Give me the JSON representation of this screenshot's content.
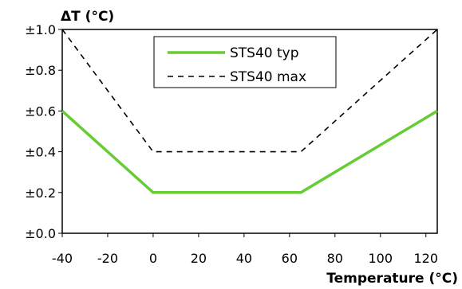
{
  "chart_data": {
    "type": "line",
    "xlabel": "Temperature (°C)",
    "ylabel": "ΔT (°C)",
    "xlim": [
      -40,
      125
    ],
    "ylim": [
      0.0,
      1.0
    ],
    "x_ticks": [
      -40,
      -20,
      0,
      20,
      40,
      60,
      80,
      100,
      120
    ],
    "x_tick_labels": [
      "-40",
      "-20",
      "0",
      "20",
      "40",
      "60",
      "80",
      "100",
      "120"
    ],
    "y_ticks": [
      0.0,
      0.2,
      0.4,
      0.6,
      0.8,
      1.0
    ],
    "y_tick_labels": [
      "±0.0",
      "±0.2",
      "±0.4",
      "±0.6",
      "±0.8",
      "±1.0"
    ],
    "grid": false,
    "legend_position": "top-center",
    "series": [
      {
        "name": "STS40 typ",
        "color": "#66cc33",
        "style": "solid",
        "x": [
          -40,
          0,
          65,
          125
        ],
        "y": [
          0.6,
          0.2,
          0.2,
          0.6
        ]
      },
      {
        "name": "STS40 max",
        "color": "#000000",
        "style": "dashed",
        "x": [
          -40,
          0,
          65,
          125
        ],
        "y": [
          1.0,
          0.4,
          0.4,
          1.0
        ]
      }
    ]
  }
}
